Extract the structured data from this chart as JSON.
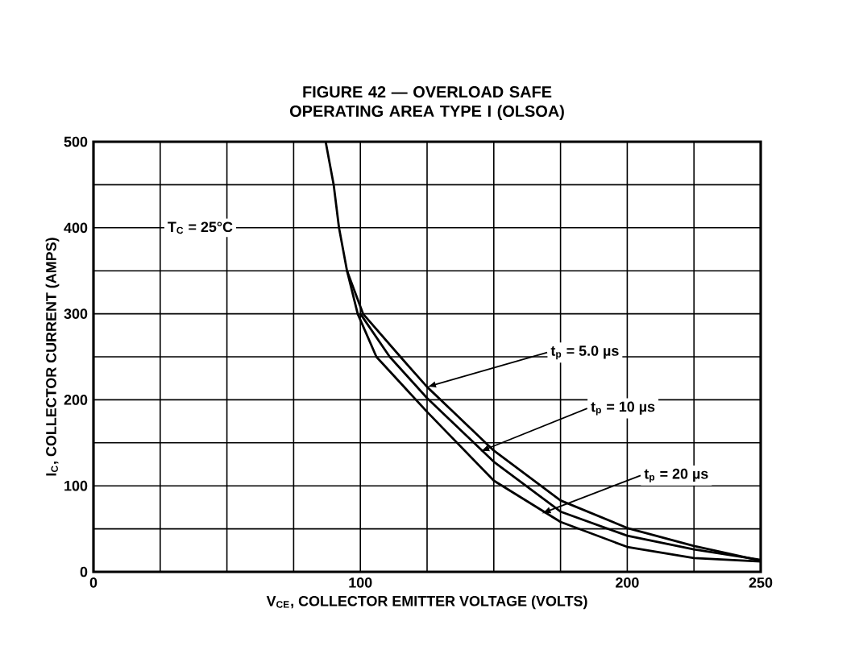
{
  "chart_data": {
    "type": "line",
    "title": "FIGURE 42 — OVERLOAD SAFE OPERATING AREA TYPE I (OLSOA)",
    "xlabel": "V$_{CE}$, COLLECTOR EMITTER VOLTAGE (VOLTS)",
    "ylabel": "I$_{C}$, COLLECTOR CURRENT (AMPS)",
    "xlim": [
      0,
      250
    ],
    "ylim": [
      0,
      500
    ],
    "xticks": [
      0,
      {
        "value": 25,
        "label": null
      },
      {
        "value": 50,
        "label": null
      },
      {
        "value": 75,
        "label": null
      },
      100,
      {
        "value": 125,
        "label": null
      },
      {
        "value": 150,
        "label": null
      },
      {
        "value": 175,
        "label": null
      },
      200,
      {
        "value": 225,
        "label": null
      },
      250
    ],
    "yticks": [
      0,
      {
        "value": 50,
        "label": null
      },
      100,
      {
        "value": 150,
        "label": null
      },
      200,
      {
        "value": 250,
        "label": null
      },
      300,
      {
        "value": 350,
        "label": null
      },
      400,
      {
        "value": 450,
        "label": null
      },
      500
    ],
    "grid": true,
    "marker": "none",
    "line_style": "solid",
    "series": [
      {
        "color": "#000000",
        "x": [
          87,
          90,
          92,
          95,
          101,
          115,
          125,
          150,
          175,
          200,
          225,
          250
        ],
        "values": [
          500,
          450,
          400,
          350,
          300,
          250,
          215,
          141,
          83,
          51,
          30,
          13
        ]
      },
      {
        "color": "#000000",
        "x": [
          100,
          111,
          125,
          150,
          175,
          200,
          225,
          250
        ],
        "values": [
          300,
          250,
          202,
          128,
          70,
          42,
          26,
          14
        ]
      },
      {
        "color": "#000000",
        "x": [
          95,
          99,
          106,
          125,
          150,
          175,
          200,
          225,
          250
        ],
        "values": [
          350,
          300,
          250,
          186,
          106,
          58,
          29,
          16,
          12
        ]
      }
    ],
    "annotations": [
      "T$_{C}$ = 25°C",
      {
        "text": "t$_{p}$ = 5.0 µs",
        "x": 125,
        "y": 215
      },
      {
        "text": "t$_{p}$ = 10 µs",
        "x": 145,
        "y": 140
      },
      {
        "text": "t$_{p}$ = 20 µs",
        "x": 168,
        "y": 68
      }
    ]
  }
}
